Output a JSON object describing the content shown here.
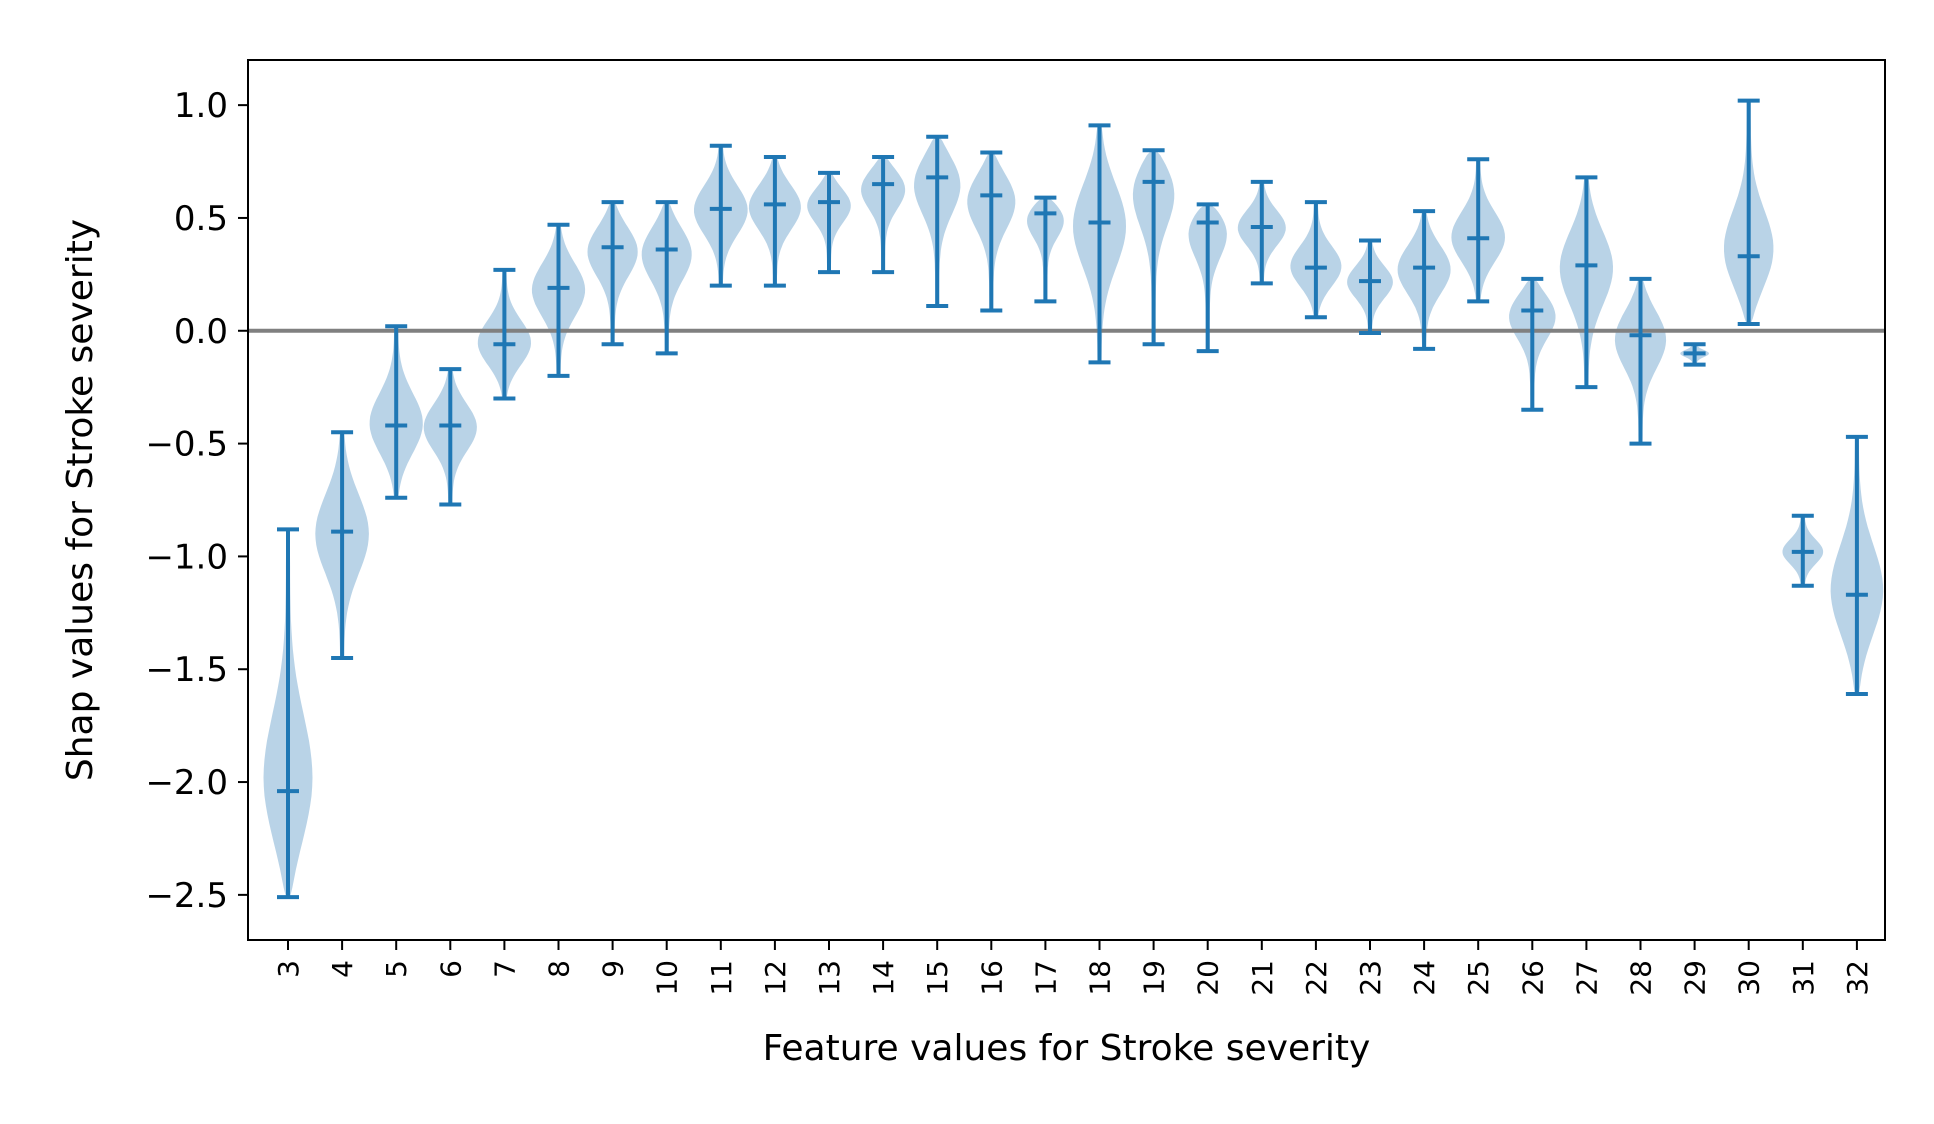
{
  "chart_data": {
    "type": "violin",
    "xlabel": "Feature values for Stroke severity",
    "ylabel": "Shap values for Stroke severity",
    "ylim": [
      -2.7,
      1.2
    ],
    "yticks": [
      1.0,
      0.5,
      0.0,
      -0.5,
      -1.0,
      -1.5,
      -2.0,
      -2.5
    ],
    "ytick_labels": [
      "1.0",
      "0.5",
      "0.0",
      "−0.5",
      "−1.0",
      "−1.5",
      "−2.0",
      "−2.5"
    ],
    "reference_line": 0.0,
    "categories": [
      "3",
      "4",
      "5",
      "6",
      "7",
      "8",
      "9",
      "10",
      "11",
      "12",
      "13",
      "14",
      "15",
      "16",
      "17",
      "18",
      "19",
      "20",
      "21",
      "22",
      "23",
      "24",
      "25",
      "26",
      "27",
      "28",
      "29",
      "30",
      "31",
      "32"
    ],
    "violins": [
      {
        "min": -2.51,
        "max": -0.88,
        "median": -2.04
      },
      {
        "min": -1.45,
        "max": -0.45,
        "median": -0.89
      },
      {
        "min": -0.74,
        "max": 0.02,
        "median": -0.42
      },
      {
        "min": -0.77,
        "max": -0.17,
        "median": -0.42
      },
      {
        "min": -0.3,
        "max": 0.27,
        "median": -0.06
      },
      {
        "min": -0.2,
        "max": 0.47,
        "median": 0.19
      },
      {
        "min": -0.06,
        "max": 0.57,
        "median": 0.37
      },
      {
        "min": -0.1,
        "max": 0.57,
        "median": 0.36
      },
      {
        "min": 0.2,
        "max": 0.82,
        "median": 0.54
      },
      {
        "min": 0.2,
        "max": 0.77,
        "median": 0.56
      },
      {
        "min": 0.26,
        "max": 0.7,
        "median": 0.57
      },
      {
        "min": 0.26,
        "max": 0.77,
        "median": 0.65
      },
      {
        "min": 0.11,
        "max": 0.86,
        "median": 0.68
      },
      {
        "min": 0.09,
        "max": 0.79,
        "median": 0.6
      },
      {
        "min": 0.13,
        "max": 0.59,
        "median": 0.52
      },
      {
        "min": -0.14,
        "max": 0.91,
        "median": 0.48
      },
      {
        "min": -0.06,
        "max": 0.8,
        "median": 0.66
      },
      {
        "min": -0.09,
        "max": 0.56,
        "median": 0.48
      },
      {
        "min": 0.21,
        "max": 0.66,
        "median": 0.46
      },
      {
        "min": 0.06,
        "max": 0.57,
        "median": 0.28
      },
      {
        "min": -0.01,
        "max": 0.4,
        "median": 0.22
      },
      {
        "min": -0.08,
        "max": 0.53,
        "median": 0.28
      },
      {
        "min": 0.13,
        "max": 0.76,
        "median": 0.41
      },
      {
        "min": -0.35,
        "max": 0.23,
        "median": 0.09
      },
      {
        "min": -0.25,
        "max": 0.68,
        "median": 0.29
      },
      {
        "min": -0.5,
        "max": 0.23,
        "median": -0.02
      },
      {
        "min": -0.15,
        "max": -0.06,
        "median": -0.1
      },
      {
        "min": 0.03,
        "max": 1.02,
        "median": 0.33
      },
      {
        "min": -1.13,
        "max": -0.82,
        "median": -0.98
      },
      {
        "min": -1.61,
        "max": -0.47,
        "median": -1.17
      }
    ],
    "colors": {
      "violin_fill": "#a8c8e1",
      "whisker": "#1f77b4",
      "reference_line": "#808080"
    },
    "grid": false
  }
}
